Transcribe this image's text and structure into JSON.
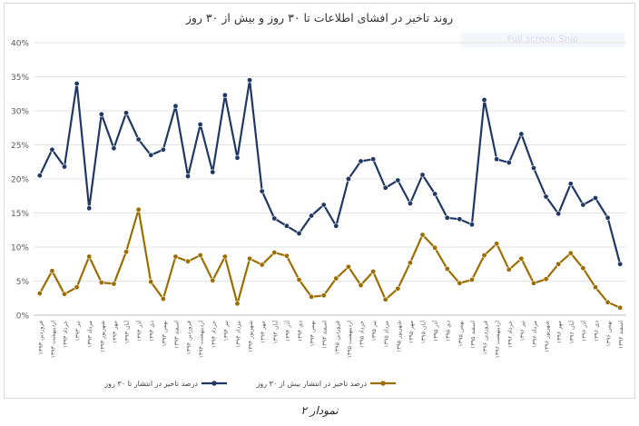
{
  "caption": "نمودار ۲",
  "overlay_text": "Full screen Snip",
  "chart_data": {
    "type": "line",
    "title": "روند تاخیر در افشای اطلاعات تا ۳۰ روز و بیش از ۳۰ روز",
    "xlabel": "",
    "ylabel": "",
    "ylim": [
      0,
      40
    ],
    "y_ticks": [
      "0%",
      "5%",
      "10%",
      "15%",
      "20%",
      "25%",
      "30%",
      "35%",
      "40%"
    ],
    "grid": true,
    "legend_position": "bottom",
    "categories": [
      "فروردین ۱۳۹۳",
      "اردیبهشت ۱۳۹۳",
      "خرداد ۱۳۹۳",
      "تیر ۱۳۹۳",
      "مرداد ۱۳۹۳",
      "شهریور ۱۳۹۳",
      "مهر ۱۳۹۳",
      "آبان ۱۳۹۳",
      "آذر ۱۳۹۳",
      "دی ۱۳۹۳",
      "بهمن ۱۳۹۳",
      "اسفند ۱۳۹۳",
      "فروردین ۱۳۹۴",
      "اردیبهشت ۱۳۹۴",
      "خرداد ۱۳۹۴",
      "تیر ۱۳۹۴",
      "مرداد ۱۳۹۴",
      "شهریور ۱۳۹۴",
      "مهر ۱۳۹۴",
      "آبان ۱۳۹۴",
      "آذر ۱۳۹۴",
      "دی ۱۳۹۴",
      "بهمن ۱۳۹۴",
      "اسفند ۱۳۹۴",
      "فروردین ۱۳۹۵",
      "اردیبهشت ۱۳۹۵",
      "خرداد ۱۳۹۵",
      "تیر ۱۳۹۵",
      "مرداد ۱۳۹۵",
      "شهریور ۱۳۹۵",
      "مهر ۱۳۹۵",
      "آبان ۱۳۹۵",
      "آذر ۱۳۹۵",
      "دی ۱۳۹۵",
      "بهمن ۱۳۹۵",
      "اسفند ۱۳۹۵",
      "فروردین ۱۳۹۶",
      "اردیبهشت ۱۳۹۶",
      "خرداد ۱۳۹۶",
      "تیر ۱۳۹۶",
      "مرداد ۱۳۹۶",
      "شهریور ۱۳۹۶",
      "مهر ۱۳۹۶",
      "آبان ۱۳۹۶",
      "آذر ۱۳۹۶",
      "دی ۱۳۹۶",
      "بهمن ۱۳۹۶",
      "اسفند ۱۳۹۶"
    ],
    "series": [
      {
        "name": "درصد تاخیر در انتشار تا ۳۰ روز",
        "color": "#1f3864",
        "values": [
          20.5,
          24.3,
          21.8,
          34.0,
          15.7,
          29.5,
          24.5,
          29.7,
          25.8,
          23.5,
          24.3,
          30.7,
          20.4,
          28.0,
          21.0,
          32.3,
          23.1,
          34.5,
          18.2,
          14.2,
          13.1,
          12.0,
          14.6,
          16.2,
          13.1,
          20.0,
          22.6,
          22.9,
          18.7,
          19.8,
          16.4,
          20.6,
          17.8,
          14.3,
          14.1,
          13.3,
          31.6,
          22.9,
          22.4,
          26.6,
          21.6,
          17.4,
          14.9,
          19.3,
          16.2,
          17.2,
          14.3,
          7.5
        ]
      },
      {
        "name": "درصد تاخیر در انتشار بیش از ۳۰ روز",
        "color": "#9c6e00",
        "values": [
          3.2,
          6.5,
          3.1,
          4.1,
          8.6,
          4.8,
          4.6,
          9.3,
          15.5,
          4.9,
          2.4,
          8.6,
          7.9,
          8.8,
          5.1,
          8.6,
          1.7,
          8.3,
          7.4,
          9.2,
          8.7,
          5.2,
          2.7,
          2.9,
          5.4,
          7.1,
          4.4,
          6.4,
          2.3,
          3.9,
          7.7,
          11.8,
          9.9,
          6.8,
          4.7,
          5.2,
          8.8,
          10.5,
          6.7,
          8.3,
          4.7,
          5.3,
          7.5,
          9.1,
          6.9,
          4.1,
          1.9,
          1.1
        ]
      }
    ]
  }
}
